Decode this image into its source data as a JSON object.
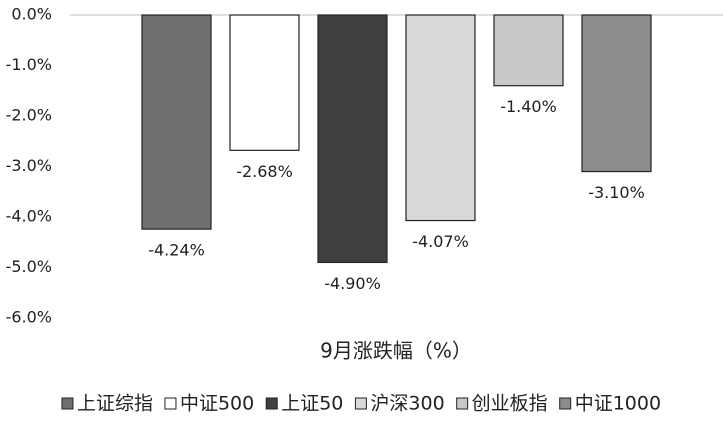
{
  "chart_data": {
    "type": "bar",
    "categories": [
      "9月涨跌幅（%）"
    ],
    "series": [
      {
        "name": "上证综指",
        "color": "#707070",
        "values": [
          -4.24
        ],
        "value_labels": [
          "-4.24%"
        ]
      },
      {
        "name": "中证500",
        "color": "#ffffff",
        "values": [
          -2.68
        ],
        "value_labels": [
          "-2.68%"
        ]
      },
      {
        "name": "上证50",
        "color": "#404040",
        "values": [
          -4.9
        ],
        "value_labels": [
          "-4.90%"
        ]
      },
      {
        "name": "沪深300",
        "color": "#d9d9d9",
        "values": [
          -4.07
        ],
        "value_labels": [
          "-4.07%"
        ]
      },
      {
        "name": "创业板指",
        "color": "#c8c8c8",
        "values": [
          -1.4
        ],
        "value_labels": [
          "-1.40%"
        ]
      },
      {
        "name": "中证1000",
        "color": "#8c8c8c",
        "values": [
          -3.1
        ],
        "value_labels": [
          "-3.10%"
        ]
      }
    ],
    "ylim": [
      -6,
      0
    ],
    "yticks": [
      {
        "value": 0,
        "label": "0.0%"
      },
      {
        "value": -1,
        "label": "-1.0%"
      },
      {
        "value": -2,
        "label": "-2.0%"
      },
      {
        "value": -3,
        "label": "-3.0%"
      },
      {
        "value": -4,
        "label": "-4.0%"
      },
      {
        "value": -5,
        "label": "-5.0%"
      },
      {
        "value": -6,
        "label": "-6.0%"
      }
    ],
    "legend": "bottom"
  }
}
